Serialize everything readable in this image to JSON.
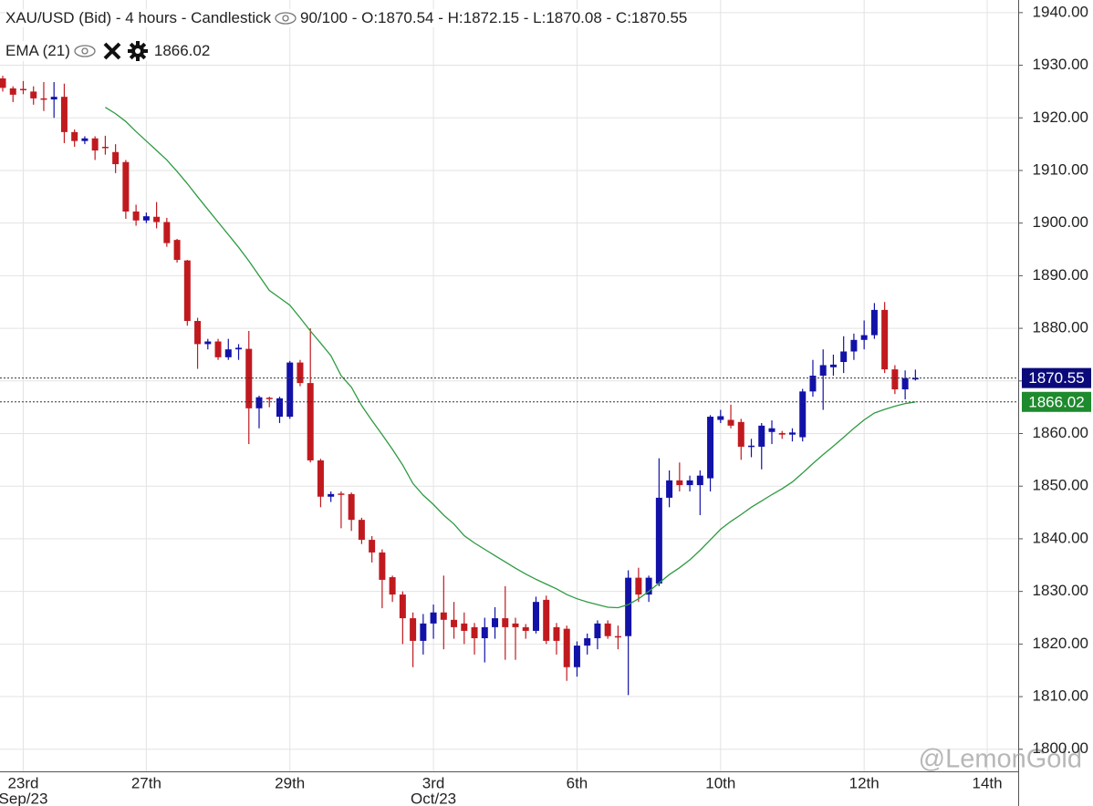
{
  "chart_data": {
    "type": "candlestick",
    "title": "XAU/USD (Bid) - 4 hours - Candlestick",
    "info": [
      "90/100",
      "O:1870.54",
      "H:1872.15",
      "L:1870.08",
      "C:1870.55"
    ],
    "separator": " - ",
    "watermark": "@LemonGold",
    "up_color": "#1212a8",
    "down_color": "#c01a1f",
    "categories": [
      null,
      null,
      "23rd",
      null,
      null,
      null,
      null,
      null,
      null,
      null,
      null,
      null,
      null,
      null,
      "27th",
      null,
      null,
      null,
      null,
      null,
      null,
      null,
      null,
      null,
      null,
      null,
      null,
      null,
      "29th",
      null,
      null,
      null,
      null,
      null,
      null,
      null,
      null,
      null,
      null,
      null,
      null,
      null,
      "3rd",
      null,
      null,
      null,
      null,
      null,
      null,
      null,
      null,
      null,
      null,
      null,
      null,
      null,
      "6th",
      null,
      null,
      null,
      null,
      null,
      null,
      null,
      null,
      null,
      null,
      null,
      null,
      null,
      "10th",
      null,
      null,
      null,
      null,
      null,
      null,
      null,
      null,
      null,
      null,
      null,
      null,
      null,
      "12th",
      null,
      null,
      null,
      null,
      null,
      null,
      null,
      null,
      null,
      null,
      null,
      "14th",
      null,
      null
    ],
    "category_sublabels": [
      null,
      null,
      "Sep/23",
      null,
      null,
      null,
      null,
      null,
      null,
      null,
      null,
      null,
      null,
      null,
      null,
      null,
      null,
      null,
      null,
      null,
      null,
      null,
      null,
      null,
      null,
      null,
      null,
      null,
      null,
      null,
      null,
      null,
      null,
      null,
      null,
      null,
      null,
      null,
      null,
      null,
      null,
      null,
      "Oct/23",
      null,
      null,
      null,
      null,
      null,
      null,
      null,
      null,
      null,
      null,
      null,
      null,
      null,
      null,
      null,
      null,
      null,
      null,
      null,
      null,
      null,
      null,
      null,
      null,
      null,
      null,
      null,
      null,
      null,
      null,
      null,
      null,
      null,
      null,
      null,
      null,
      null,
      null,
      null,
      null,
      null,
      null,
      null,
      null,
      null,
      null,
      null,
      null,
      null,
      null,
      null,
      null,
      null,
      null
    ],
    "open": [
      1927.5,
      1925.6,
      1925.5,
      1925,
      1923.7,
      1923.5,
      1924,
      1917.3,
      1915.6,
      1916.1,
      1914.5,
      1913.5,
      1911.6,
      1902.2,
      1900.5,
      1901.2,
      1900.2,
      1896.8,
      1892.9,
      1881.4,
      1877,
      1877.5,
      1874.5,
      1876,
      1876.1,
      1864.8,
      1866.8,
      1863.2,
      1863.2,
      1873.5,
      1869.6,
      1854.9,
      1848,
      1848.6,
      1848.5,
      1843.6,
      1839.8,
      1837.4,
      1832.7,
      1829.4,
      1824.9,
      1820.6,
      1823.9,
      1826,
      1824.6,
      1823.9,
      1823.2,
      1821.1,
      1823.2,
      1824.9,
      1823.9,
      1823.2,
      1822.5,
      1828.4,
      1823.2,
      1822.9,
      1815.6,
      1819.7,
      1821.1,
      1823.9,
      1821.5,
      1821.5,
      1832.6,
      1829.4,
      1831.5,
      1847.8,
      1851.1,
      1850.2,
      1850.2,
      1851.5,
      1862.6,
      1862.6,
      1862.2,
      1857.5,
      1857.5,
      1860.3,
      1860.1,
      1859.8,
      1859.3,
      1868,
      1871,
      1872.6,
      1873.6,
      1875.6,
      1877.8,
      1878.7,
      1883.5,
      1872.2,
      1868.4,
      1870.54,
      null,
      null,
      null,
      null,
      null,
      null,
      null,
      null,
      null
    ],
    "high": [
      1928,
      1926,
      1927,
      1926,
      1926.8,
      1926.8,
      1926.5,
      1917.8,
      1916.5,
      1916.5,
      1916.6,
      1915,
      1912,
      1903.5,
      1902,
      1904,
      1901,
      1897,
      1893,
      1882,
      1878,
      1878,
      1878,
      1877,
      1879.5,
      1867.2,
      1867,
      1867,
      1873.8,
      1874,
      1880,
      1855.2,
      1849,
      1849,
      1848.8,
      1844,
      1840.5,
      1838,
      1833,
      1830,
      1826,
      1825.7,
      1827.5,
      1833,
      1828,
      1826,
      1824,
      1825,
      1827,
      1831,
      1825,
      1823.8,
      1829,
      1829.2,
      1824,
      1823.5,
      1820.5,
      1822,
      1824.5,
      1824.5,
      1823.5,
      1834,
      1834.5,
      1833,
      1855.3,
      1853,
      1854.5,
      1852,
      1853,
      1863.5,
      1864.5,
      1865.5,
      1862.8,
      1859,
      1862,
      1862.5,
      1860.5,
      1861,
      1868.5,
      1874,
      1876,
      1875,
      1878.5,
      1879,
      1881.5,
      1884.8,
      1885,
      1873,
      1872,
      1872.15,
      null,
      null,
      null,
      null,
      null,
      null,
      null,
      null,
      null
    ],
    "low": [
      1925,
      1923,
      1924.5,
      1922.5,
      1921.3,
      1920,
      1915.2,
      1914.5,
      1915,
      1912,
      1913,
      1909.5,
      1900.8,
      1899.5,
      1900,
      1899,
      1895.5,
      1892.5,
      1880.5,
      1872.3,
      1876,
      1874,
      1874,
      1874,
      1858,
      1861,
      1865,
      1862,
      1862.8,
      1869,
      1854.5,
      1846,
      1847,
      1842,
      1841.5,
      1839,
      1835.5,
      1826.8,
      1828,
      1820,
      1815.6,
      1818,
      1821,
      1819,
      1821,
      1820,
      1818,
      1816.5,
      1821,
      1817,
      1817,
      1821,
      1822,
      1820,
      1818,
      1813,
      1813.8,
      1818,
      1819,
      1821,
      1819,
      1810.3,
      1828,
      1828,
      1831,
      1846,
      1849,
      1849,
      1844.5,
      1849,
      1862,
      1861,
      1855,
      1855.5,
      1853.2,
      1858,
      1859,
      1858.5,
      1858.5,
      1867,
      1864.5,
      1871,
      1871.5,
      1874,
      1876,
      1878,
      1871.5,
      1867.5,
      1866.5,
      1870.08,
      null,
      null,
      null,
      null,
      null,
      null,
      null,
      null,
      null
    ],
    "close": [
      1925.7,
      1924.4,
      1925.3,
      1923.7,
      1923.5,
      1924,
      1917.3,
      1915.6,
      1916.1,
      1913.8,
      1914.3,
      1911.2,
      1902.2,
      1900.5,
      1901.3,
      1900.2,
      1896.2,
      1893,
      1881.4,
      1877,
      1877.5,
      1874.5,
      1876,
      1876.3,
      1864.8,
      1866.9,
      1866.6,
      1866.7,
      1873.5,
      1869.6,
      1854.9,
      1848,
      1848.5,
      1848.5,
      1843.6,
      1839.8,
      1837.4,
      1832.2,
      1829.4,
      1824.9,
      1820.6,
      1823.9,
      1826,
      1824.6,
      1823.2,
      1822.5,
      1821.1,
      1823.2,
      1824.9,
      1823.2,
      1823.2,
      1822.5,
      1828,
      1820.6,
      1820.6,
      1815.6,
      1819.7,
      1821.1,
      1823.9,
      1821.5,
      1821.3,
      1832.6,
      1829.4,
      1832.6,
      1847.8,
      1851.1,
      1850.2,
      1851.1,
      1852,
      1863.2,
      1863.3,
      1861.5,
      1857.5,
      1857.7,
      1861.5,
      1861,
      1859.8,
      1860.2,
      1868,
      1871,
      1873,
      1873.1,
      1875.6,
      1877.8,
      1878.7,
      1883.5,
      1872.2,
      1868.4,
      1870.55,
      1870.55,
      null,
      null,
      null,
      null,
      null,
      null,
      null,
      null,
      null
    ],
    "ema": {
      "name": "EMA (21)",
      "color": "#2e9a40",
      "last_label": "1866.02",
      "values": [
        null,
        null,
        null,
        null,
        null,
        null,
        null,
        null,
        null,
        null,
        1922,
        1920.8,
        1919.3,
        1917.4,
        1915.6,
        1913.8,
        1912,
        1909.8,
        1907.5,
        1905,
        1902.6,
        1900.2,
        1897.8,
        1895.4,
        1892.8,
        1890,
        1887.2,
        1885.8,
        1884.4,
        1882,
        1879.5,
        1877.2,
        1874.8,
        1871,
        1868.8,
        1865.3,
        1862.5,
        1859.8,
        1857,
        1854,
        1850.5,
        1848.3,
        1846.5,
        1844.5,
        1842.8,
        1840.6,
        1839.2,
        1838,
        1836.8,
        1835.6,
        1834.4,
        1833.3,
        1832.3,
        1831.4,
        1830.5,
        1829.4,
        1828.6,
        1828,
        1827.5,
        1827,
        1826.9,
        1827.5,
        1828.6,
        1830,
        1831.6,
        1833.2,
        1834.5,
        1836,
        1837.8,
        1839.8,
        1841.8,
        1843.3,
        1844.6,
        1846,
        1847.2,
        1848.4,
        1849.5,
        1850.8,
        1852.5,
        1854.3,
        1856,
        1857.6,
        1859.3,
        1861,
        1862.6,
        1863.9,
        1864.6,
        1865.2,
        1865.7,
        1866.02,
        null,
        null,
        null,
        null,
        null,
        null,
        null,
        null,
        null
      ]
    },
    "price_lines": [
      1870.55,
      1866.02
    ],
    "price_line_colors": [
      "#0a0a7a",
      "#1e8a2e"
    ],
    "ylim": [
      1795.8,
      1942.4
    ],
    "yticks": [
      {
        "value": 1800,
        "label": "1800.00"
      },
      {
        "value": 1810,
        "label": "1810.00"
      },
      {
        "value": 1820,
        "label": "1820.00"
      },
      {
        "value": 1830,
        "label": "1830.00"
      },
      {
        "value": 1840,
        "label": "1840.00"
      },
      {
        "value": 1850,
        "label": "1850.00"
      },
      {
        "value": 1860,
        "label": "1860.00"
      },
      {
        "value": 1870,
        "label": "1870.00"
      },
      {
        "value": 1880,
        "label": "1880.00"
      },
      {
        "value": 1890,
        "label": "1890.00"
      },
      {
        "value": 1900,
        "label": "1900.00"
      },
      {
        "value": 1910,
        "label": "1910.00"
      },
      {
        "value": 1920,
        "label": "1920.00"
      },
      {
        "value": 1930,
        "label": "1930.00"
      },
      {
        "value": 1940,
        "label": "1940.00"
      }
    ],
    "grid": true
  }
}
